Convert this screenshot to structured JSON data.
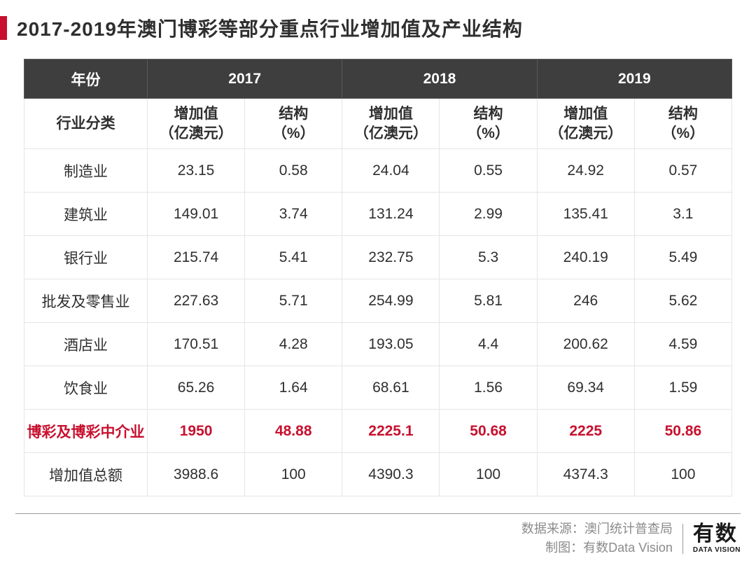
{
  "title": "2017-2019年澳门博彩等部分重点行业增加值及产业结构",
  "colors": {
    "accent": "#c8102e",
    "header_bg": "#3e3e3e",
    "header_text": "#ffffff",
    "body_text": "#2f2f2f",
    "border": "#e5e5e5",
    "footer_text": "#8b8b8b"
  },
  "typography": {
    "title_fontsize": 28,
    "cell_fontsize": 21,
    "footer_fontsize": 18
  },
  "table": {
    "type": "table",
    "year_header_label": "年份",
    "years": [
      "2017",
      "2018",
      "2019"
    ],
    "category_label": "行业分类",
    "sub_headers": {
      "value": "增加值\n（亿澳元）",
      "structure": "结构\n（%）"
    },
    "rows": [
      {
        "label": "制造业",
        "cells": [
          "23.15",
          "0.58",
          "24.04",
          "0.55",
          "24.92",
          "0.57"
        ],
        "highlight": false
      },
      {
        "label": "建筑业",
        "cells": [
          "149.01",
          "3.74",
          "131.24",
          "2.99",
          "135.41",
          "3.1"
        ],
        "highlight": false
      },
      {
        "label": "银行业",
        "cells": [
          "215.74",
          "5.41",
          "232.75",
          "5.3",
          "240.19",
          "5.49"
        ],
        "highlight": false
      },
      {
        "label": "批发及零售业",
        "cells": [
          "227.63",
          "5.71",
          "254.99",
          "5.81",
          "246",
          "5.62"
        ],
        "highlight": false
      },
      {
        "label": "酒店业",
        "cells": [
          "170.51",
          "4.28",
          "193.05",
          "4.4",
          "200.62",
          "4.59"
        ],
        "highlight": false
      },
      {
        "label": "饮食业",
        "cells": [
          "65.26",
          "1.64",
          "68.61",
          "1.56",
          "69.34",
          "1.59"
        ],
        "highlight": false
      },
      {
        "label": "博彩及博彩中介业",
        "cells": [
          "1950",
          "48.88",
          "2225.1",
          "50.68",
          "2225",
          "50.86"
        ],
        "highlight": true
      },
      {
        "label": "增加值总额",
        "cells": [
          "3988.6",
          "100",
          "4390.3",
          "100",
          "4374.3",
          "100"
        ],
        "highlight": false
      }
    ]
  },
  "footer": {
    "source_line1": "数据来源：澳门统计普查局",
    "source_line2": "制图：有数Data Vision",
    "logo_cn": "有数",
    "logo_en": "DATA VISION"
  }
}
